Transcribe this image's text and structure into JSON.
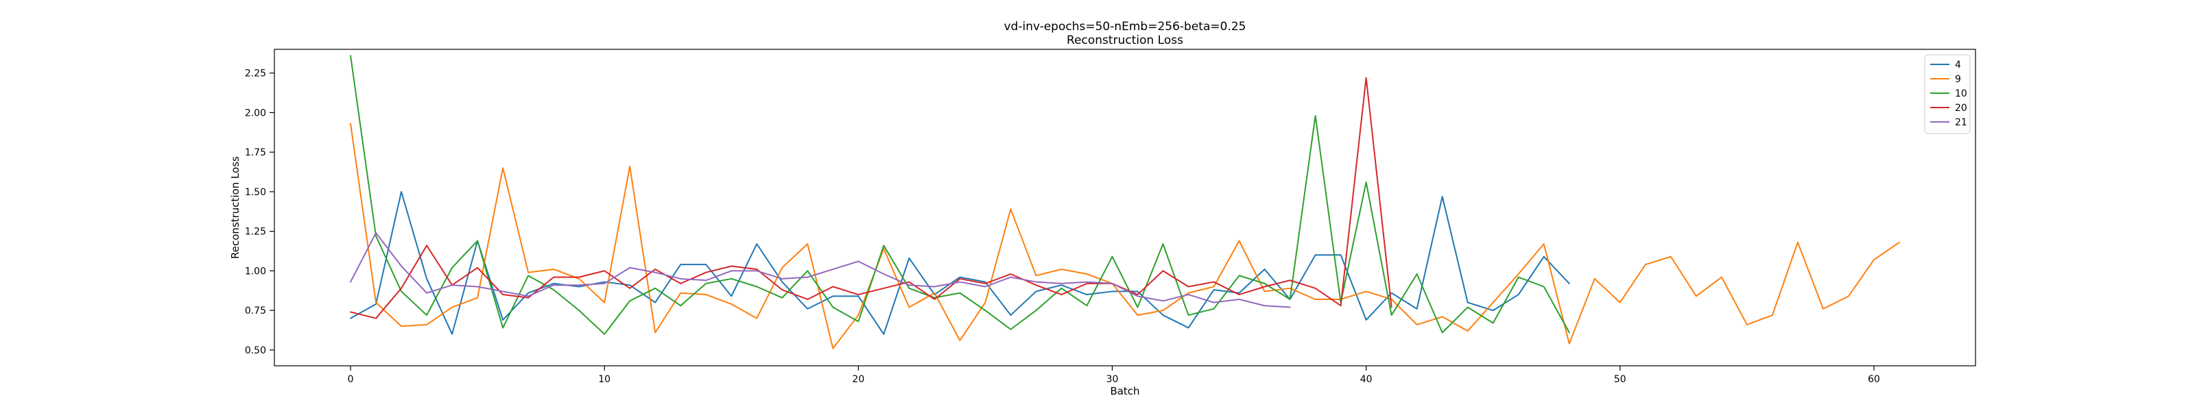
{
  "chart_data": {
    "type": "line",
    "title": "vd-inv-epochs=50-nEmb=256-beta=0.25",
    "subtitle": "Reconstruction Loss",
    "xlabel": "Batch",
    "ylabel": "Reconstruction Loss",
    "xlim": [
      -3,
      64
    ],
    "ylim": [
      0.4,
      2.4
    ],
    "xticks": [
      0,
      10,
      20,
      30,
      40,
      50,
      60
    ],
    "yticks": [
      0.5,
      0.75,
      1.0,
      1.25,
      1.5,
      1.75,
      2.0,
      2.25
    ],
    "ytick_labels": [
      "0.50",
      "0.75",
      "1.00",
      "1.25",
      "1.50",
      "1.75",
      "2.00",
      "2.25"
    ],
    "grid": false,
    "legend_position": "top-right",
    "series": [
      {
        "name": "4",
        "color": "#1f77b4",
        "values": [
          0.7,
          0.79,
          1.5,
          0.95,
          0.6,
          1.19,
          0.69,
          0.86,
          0.92,
          0.9,
          0.93,
          0.91,
          0.8,
          1.04,
          1.04,
          0.84,
          1.17,
          0.93,
          0.76,
          0.84,
          0.84,
          0.6,
          1.08,
          0.85,
          0.96,
          0.93,
          0.72,
          0.87,
          0.91,
          0.85,
          0.87,
          0.87,
          0.72,
          0.64,
          0.88,
          0.86,
          1.01,
          0.82,
          1.1,
          1.1,
          0.69,
          0.86,
          0.76,
          1.47,
          0.8,
          0.75,
          0.85,
          1.09,
          0.92
        ]
      },
      {
        "name": "9",
        "color": "#ff7f0e",
        "values": [
          1.93,
          0.8,
          0.65,
          0.66,
          0.77,
          0.83,
          1.65,
          0.99,
          1.01,
          0.95,
          0.8,
          1.66,
          0.61,
          0.86,
          0.85,
          0.79,
          0.7,
          1.02,
          1.17,
          0.51,
          0.72,
          1.14,
          0.77,
          0.86,
          0.56,
          0.8,
          1.39,
          0.97,
          1.01,
          0.98,
          0.92,
          0.72,
          0.75,
          0.86,
          0.9,
          1.19,
          0.87,
          0.89,
          0.82,
          0.82,
          0.87,
          0.82,
          0.66,
          0.71,
          0.62,
          0.8,
          0.98,
          1.17,
          0.54,
          0.95,
          0.8,
          1.04,
          1.09,
          0.84,
          0.96,
          0.66,
          0.72,
          1.18,
          0.76,
          0.84,
          1.07,
          1.18
        ]
      },
      {
        "name": "10",
        "color": "#2ca02c",
        "values": [
          2.36,
          1.22,
          0.87,
          0.72,
          1.02,
          1.19,
          0.64,
          0.97,
          0.88,
          0.75,
          0.6,
          0.81,
          0.89,
          0.78,
          0.92,
          0.95,
          0.9,
          0.83,
          1.0,
          0.77,
          0.68,
          1.16,
          0.89,
          0.83,
          0.86,
          0.75,
          0.63,
          0.75,
          0.89,
          0.78,
          1.09,
          0.77,
          1.17,
          0.72,
          0.76,
          0.97,
          0.92,
          0.82,
          1.98,
          0.8,
          1.56,
          0.72,
          0.98,
          0.61,
          0.77,
          0.67,
          0.96,
          0.9,
          0.61
        ]
      },
      {
        "name": "20",
        "color": "#d62728",
        "values": [
          0.74,
          0.7,
          0.89,
          1.16,
          0.91,
          1.02,
          0.85,
          0.83,
          0.96,
          0.96,
          1.0,
          0.89,
          1.01,
          0.92,
          0.99,
          1.03,
          1.01,
          0.88,
          0.82,
          0.9,
          0.85,
          0.89,
          0.93,
          0.82,
          0.95,
          0.92,
          0.98,
          0.91,
          0.85,
          0.92,
          0.92,
          0.85,
          1.0,
          0.9,
          0.93,
          0.85,
          0.9,
          0.94,
          0.89,
          0.78,
          2.22,
          0.77
        ]
      },
      {
        "name": "21",
        "color": "#9467bd",
        "values": [
          0.93,
          1.24,
          1.03,
          0.86,
          0.91,
          0.9,
          0.87,
          0.84,
          0.91,
          0.91,
          0.92,
          1.02,
          0.99,
          0.95,
          0.94,
          1.0,
          1.0,
          0.95,
          0.96,
          1.01,
          1.06,
          0.98,
          0.91,
          0.9,
          0.93,
          0.9,
          0.96,
          0.93,
          0.92,
          0.93,
          0.92,
          0.84,
          0.81,
          0.85,
          0.8,
          0.82,
          0.78,
          0.77
        ]
      }
    ]
  }
}
